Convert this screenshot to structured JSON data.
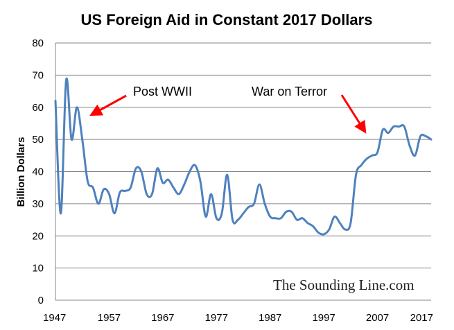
{
  "chart_data": {
    "type": "line",
    "title": "US Foreign Aid in Constant 2017 Dollars",
    "xlabel": "",
    "ylabel": "Billion Dollars",
    "xlim": [
      1947,
      2017
    ],
    "ylim": [
      0,
      80
    ],
    "x_ticks": [
      "1947",
      "1957",
      "1967",
      "1977",
      "1987",
      "1997",
      "2007",
      "2017"
    ],
    "y_ticks": [
      "0",
      "10",
      "20",
      "30",
      "40",
      "50",
      "60",
      "70",
      "80"
    ],
    "grid": true,
    "legend": "none",
    "line_color": "#4f81bd",
    "annotation_color": "#ff0000",
    "series": [
      {
        "x": [
          1947,
          1948,
          1949,
          1950,
          1951,
          1952,
          1953,
          1954,
          1955,
          1956,
          1957,
          1958,
          1959,
          1960,
          1961,
          1962,
          1963,
          1964,
          1965,
          1966,
          1967,
          1968,
          1969,
          1970,
          1971,
          1972,
          1973,
          1974,
          1975,
          1976,
          1977,
          1978,
          1979,
          1980,
          1981,
          1982,
          1983,
          1984,
          1985,
          1986,
          1987,
          1988,
          1989,
          1990,
          1991,
          1992,
          1993,
          1994,
          1995,
          1996,
          1997,
          1998,
          1999,
          2000,
          2001,
          2002,
          2003,
          2004,
          2005,
          2006,
          2007,
          2008,
          2009,
          2010,
          2011,
          2012,
          2013,
          2014,
          2015,
          2016,
          2017
        ],
        "values": [
          62,
          27,
          68.5,
          50,
          60,
          50,
          37,
          35,
          30,
          34.5,
          33,
          27,
          33.5,
          34,
          35,
          41,
          40,
          33,
          33,
          41,
          36.5,
          37.5,
          35,
          33,
          36,
          40,
          42,
          37,
          26,
          33,
          25.5,
          27,
          39,
          25,
          25,
          27,
          29,
          30,
          36,
          30,
          26,
          25.5,
          25.5,
          27.5,
          27.5,
          25,
          25.5,
          24,
          23,
          21,
          20.5,
          22,
          26,
          24,
          22,
          24,
          39,
          42,
          44,
          45,
          46,
          53,
          52,
          54,
          54,
          54,
          48,
          45,
          51,
          51,
          50
        ]
      }
    ],
    "annotations": [
      {
        "text": "Post WWII",
        "points_to": [
          1950.5,
          57
        ]
      },
      {
        "text": "War on Terror",
        "points_to": [
          2005.5,
          50
        ]
      }
    ],
    "watermark": "The Sounding Line.com"
  }
}
